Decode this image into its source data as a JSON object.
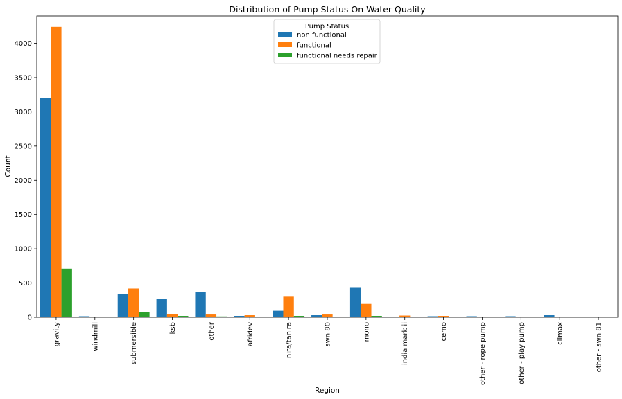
{
  "chart_data": {
    "type": "bar",
    "title": "Distribution of Pump Status On Water Quality",
    "xlabel": "Region",
    "ylabel": "Count",
    "ylim": [
      0,
      4400
    ],
    "yticks": [
      0,
      500,
      1000,
      1500,
      2000,
      2500,
      3000,
      3500,
      4000
    ],
    "grid": false,
    "legend": {
      "title": "Pump Status",
      "placement": "top-center"
    },
    "categories": [
      "gravity",
      "windmill",
      "submersible",
      "ksb",
      "other",
      "afridev",
      "nira/tanira",
      "swn 80",
      "mono",
      "india mark ii",
      "cemo",
      "other - rope pump",
      "other - play pump",
      "climax",
      "other - swn 81"
    ],
    "series": [
      {
        "name": "non functional",
        "color": "#1f77b4",
        "values": [
          3200,
          15,
          340,
          270,
          370,
          20,
          95,
          30,
          430,
          10,
          15,
          15,
          15,
          30,
          0
        ]
      },
      {
        "name": "functional",
        "color": "#ff7f0e",
        "values": [
          4240,
          8,
          420,
          50,
          40,
          30,
          300,
          40,
          195,
          25,
          20,
          0,
          0,
          0,
          8
        ]
      },
      {
        "name": "functional needs repair",
        "color": "#2ca02c",
        "values": [
          710,
          0,
          75,
          20,
          12,
          5,
          20,
          10,
          20,
          5,
          5,
          0,
          0,
          0,
          0
        ]
      }
    ]
  }
}
